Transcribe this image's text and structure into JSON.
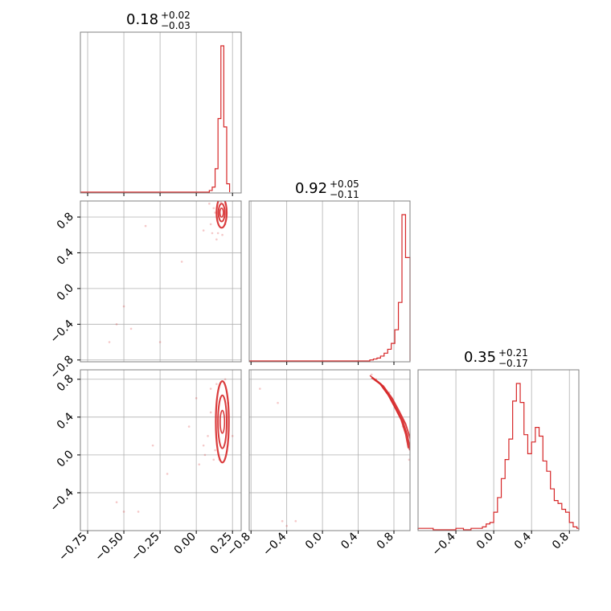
{
  "figure": {
    "background": "#ffffff",
    "accent": "#d62728"
  },
  "chart_data": {
    "type": "corner",
    "parameters": 3,
    "grid": true,
    "colors": {
      "series": "#d62728",
      "grid": "#b0b0b0",
      "frame": "#808080"
    },
    "ticks": {
      "p1": [
        "−0.75",
        "−0.50",
        "−0.25",
        "0.00",
        "0.25"
      ],
      "p2": [
        "−0.8",
        "−0.4",
        "0.0",
        "0.4",
        "0.8"
      ],
      "p3": [
        "−0.4",
        "0.0",
        "0.4",
        "0.8"
      ]
    },
    "ranges": {
      "p1": [
        -0.8,
        0.31
      ],
      "p2": [
        -0.82,
        0.98
      ],
      "p3": [
        -0.8,
        0.9
      ]
    },
    "titles": [
      {
        "value": "0.18",
        "plus": "+0.02",
        "minus": "−0.03"
      },
      {
        "value": "0.92",
        "plus": "+0.05",
        "minus": "−0.11"
      },
      {
        "value": "0.35",
        "plus": "+0.21",
        "minus": "−0.17"
      }
    ],
    "hist_p1": {
      "edges": [
        0.09,
        0.11,
        0.13,
        0.15,
        0.17,
        0.19,
        0.21,
        0.23
      ],
      "counts": [
        2,
        6,
        28,
        88,
        175,
        78,
        10
      ]
    },
    "hist_p2": {
      "edges": [
        0.53,
        0.57,
        0.61,
        0.65,
        0.69,
        0.73,
        0.77,
        0.81,
        0.85,
        0.89,
        0.93,
        0.98
      ],
      "counts": [
        1,
        2,
        3,
        5,
        8,
        12,
        18,
        32,
        60,
        150,
        106
      ]
    },
    "hist_p3": {
      "edges": [
        -0.8,
        -0.72,
        -0.64,
        -0.56,
        -0.48,
        -0.4,
        -0.32,
        -0.24,
        -0.16,
        -0.12,
        -0.08,
        -0.04,
        0.0,
        0.04,
        0.08,
        0.12,
        0.16,
        0.2,
        0.24,
        0.28,
        0.32,
        0.36,
        0.4,
        0.44,
        0.48,
        0.52,
        0.56,
        0.6,
        0.64,
        0.68,
        0.72,
        0.76,
        0.8,
        0.84,
        0.88,
        0.9
      ],
      "counts": [
        1,
        1,
        0,
        0,
        0,
        1,
        0,
        1,
        1,
        2,
        4,
        5,
        12,
        22,
        35,
        48,
        62,
        88,
        100,
        87,
        65,
        52,
        60,
        70,
        64,
        47,
        40,
        28,
        20,
        18,
        14,
        12,
        5,
        2,
        1
      ]
    },
    "contours_p1p2": {
      "center": [
        0.175,
        0.85
      ],
      "levels": [
        {
          "rx": 0.035,
          "ry": 0.17,
          "width": 2.2
        },
        {
          "rx": 0.022,
          "ry": 0.1,
          "width": 2.0
        },
        {
          "rx": 0.012,
          "ry": 0.05,
          "width": 1.6
        }
      ],
      "scatter": [
        [
          -0.45,
          -0.45
        ],
        [
          -0.55,
          -0.4
        ],
        [
          -0.5,
          -0.2
        ],
        [
          -0.6,
          -0.6
        ],
        [
          -0.35,
          0.7
        ],
        [
          -0.25,
          -0.6
        ],
        [
          -0.1,
          0.3
        ],
        [
          0.05,
          0.65
        ],
        [
          0.12,
          0.9
        ],
        [
          0.15,
          0.62
        ],
        [
          0.2,
          0.95
        ],
        [
          0.1,
          0.72
        ],
        [
          0.14,
          0.55
        ],
        [
          0.18,
          0.6
        ],
        [
          0.09,
          0.95
        ],
        [
          0.16,
          0.78
        ],
        [
          0.13,
          0.85
        ],
        [
          0.2,
          0.72
        ],
        [
          0.11,
          0.62
        ],
        [
          0.17,
          0.97
        ]
      ]
    },
    "contours_p1p3": {
      "center": [
        0.18,
        0.35
      ],
      "levels": [
        {
          "rx": 0.045,
          "ry": 0.43,
          "width": 2.2
        },
        {
          "rx": 0.03,
          "ry": 0.28,
          "width": 2.0
        },
        {
          "rx": 0.015,
          "ry": 0.12,
          "width": 1.6
        }
      ],
      "scatter": [
        [
          -0.55,
          -0.5
        ],
        [
          -0.5,
          -0.6
        ],
        [
          -0.4,
          -0.6
        ],
        [
          -0.3,
          0.1
        ],
        [
          -0.2,
          -0.2
        ],
        [
          -0.05,
          0.3
        ],
        [
          0.0,
          0.6
        ],
        [
          0.05,
          0.1
        ],
        [
          0.08,
          0.2
        ],
        [
          0.1,
          0.7
        ],
        [
          0.12,
          -0.05
        ],
        [
          0.14,
          0.75
        ],
        [
          0.22,
          0.55
        ],
        [
          0.25,
          0.2
        ],
        [
          0.1,
          0.45
        ],
        [
          0.06,
          0.0
        ],
        [
          0.02,
          -0.1
        ],
        [
          0.13,
          0.05
        ],
        [
          0.2,
          0.8
        ],
        [
          0.16,
          -0.05
        ]
      ]
    },
    "contours_p2p3": {
      "arc": [
        [
          0.55,
          0.82
        ],
        [
          0.65,
          0.75
        ],
        [
          0.75,
          0.62
        ],
        [
          0.83,
          0.48
        ],
        [
          0.9,
          0.35
        ],
        [
          0.95,
          0.2
        ],
        [
          0.98,
          0.05
        ]
      ],
      "widths": [
        2.4,
        1.8,
        1.4
      ],
      "scatter": [
        [
          -0.7,
          0.7
        ],
        [
          -0.45,
          -0.7
        ],
        [
          -0.5,
          0.55
        ],
        [
          -0.4,
          -0.75
        ],
        [
          -0.3,
          -0.7
        ],
        [
          0.55,
          0.85
        ],
        [
          0.6,
          0.8
        ],
        [
          0.7,
          0.7
        ],
        [
          0.8,
          0.55
        ],
        [
          0.9,
          0.3
        ],
        [
          0.95,
          0.15
        ],
        [
          0.97,
          -0.05
        ],
        [
          0.85,
          0.45
        ],
        [
          0.75,
          0.66
        ],
        [
          0.93,
          0.25
        ]
      ]
    }
  }
}
